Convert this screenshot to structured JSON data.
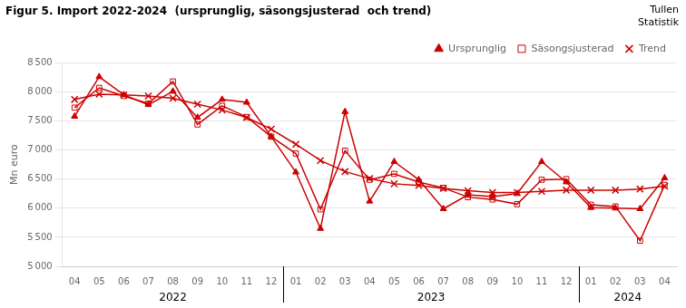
{
  "chart_data": {
    "type": "line",
    "title": "Figur 5. Import 2022-2024  (ursprunglig, säsongsjusterad  och trend)",
    "watermark": "Tullen\nStatistik",
    "y_label": "Mn euro",
    "categories": [
      "04",
      "05",
      "06",
      "07",
      "08",
      "09",
      "10",
      "11",
      "12",
      "01",
      "02",
      "03",
      "04",
      "05",
      "06",
      "07",
      "08",
      "09",
      "10",
      "11",
      "12",
      "01",
      "02",
      "03",
      "04"
    ],
    "year_labels": [
      {
        "label": "2022",
        "start": 0,
        "end": 8
      },
      {
        "label": "2023",
        "start": 9,
        "end": 20
      },
      {
        "label": "2024",
        "start": 21,
        "end": 24
      }
    ],
    "series": [
      {
        "name": "Ursprunglig",
        "color": "#cc0000",
        "marker": "triangle",
        "line_style": "solid",
        "values": [
          7580,
          8260,
          7950,
          7780,
          8010,
          7560,
          7870,
          7820,
          7230,
          6620,
          5650,
          7660,
          6120,
          6800,
          6490,
          5990,
          6230,
          6200,
          6250,
          6800,
          6450,
          6010,
          6000,
          5990,
          6520
        ]
      },
      {
        "name": "Säsongsjusterad",
        "color": "#cc0000",
        "marker": "square",
        "line_style": "solid",
        "values": [
          7730,
          8070,
          7930,
          7800,
          8180,
          7440,
          7760,
          7570,
          7230,
          6940,
          5980,
          6990,
          6490,
          6590,
          6450,
          6350,
          6190,
          6150,
          6070,
          6490,
          6500,
          6060,
          6030,
          5440,
          6400
        ]
      },
      {
        "name": "Trend",
        "color": "#cc0000",
        "marker": "x",
        "line_style": "solid",
        "values": [
          7870,
          7960,
          7950,
          7930,
          7890,
          7790,
          7690,
          7560,
          7360,
          7100,
          6820,
          6630,
          6510,
          6420,
          6390,
          6340,
          6300,
          6270,
          6270,
          6290,
          6310,
          6310,
          6310,
          6330,
          6380
        ]
      }
    ],
    "ylim": [
      5000,
      8500
    ],
    "yticks": [
      {
        "value": 5000,
        "label": "5 000"
      },
      {
        "value": 5500,
        "label": "5 500"
      },
      {
        "value": 6000,
        "label": "6 000"
      },
      {
        "value": 6500,
        "label": "6 500"
      },
      {
        "value": 7000,
        "label": "7 000"
      },
      {
        "value": 7500,
        "label": "7 500"
      },
      {
        "value": 8000,
        "label": "8 000"
      },
      {
        "value": 8500,
        "label": "8 500"
      }
    ],
    "grid": true,
    "legend": "upper right"
  }
}
